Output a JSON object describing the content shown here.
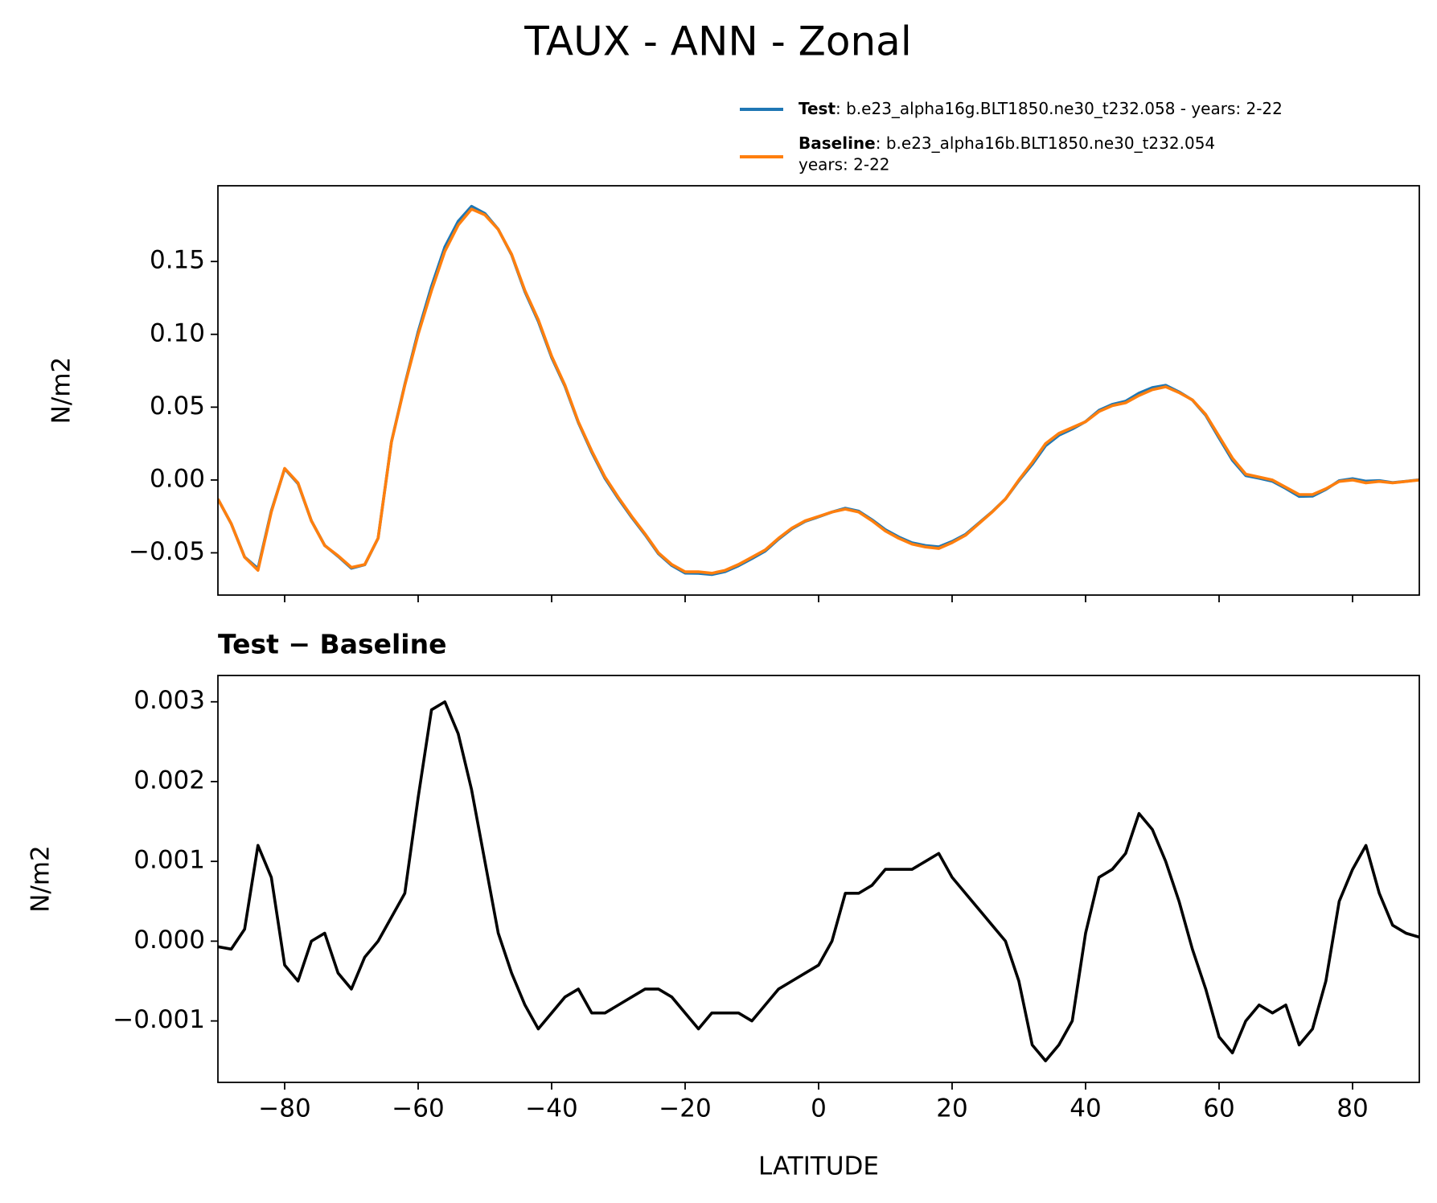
{
  "chart_data": [
    {
      "type": "line",
      "title": "TAUX - ANN - Zonal",
      "ylabel": "N/m2",
      "x": [
        -90,
        -88,
        -86,
        -84,
        -82,
        -80,
        -78,
        -76,
        -74,
        -72,
        -70,
        -68,
        -66,
        -64,
        -62,
        -60,
        -58,
        -56,
        -54,
        -52,
        -50,
        -48,
        -46,
        -44,
        -42,
        -40,
        -38,
        -36,
        -34,
        -32,
        -30,
        -28,
        -26,
        -24,
        -22,
        -20,
        -18,
        -16,
        -14,
        -12,
        -10,
        -8,
        -6,
        -4,
        -2,
        0,
        2,
        4,
        6,
        8,
        10,
        12,
        14,
        16,
        18,
        20,
        22,
        24,
        26,
        28,
        30,
        32,
        34,
        36,
        38,
        40,
        42,
        44,
        46,
        48,
        50,
        52,
        54,
        56,
        58,
        60,
        62,
        64,
        66,
        68,
        70,
        72,
        74,
        76,
        78,
        80,
        82,
        84,
        86,
        88,
        90
      ],
      "series": [
        {
          "name": "Test",
          "case": ": b.e23_alpha16g.BLT1850.ne30_t232.058 - years: 2-22",
          "color": "#1f77b4",
          "values": [
            -0.0131,
            -0.0301,
            -0.0529,
            -0.0608,
            -0.0212,
            0.0077,
            -0.0025,
            -0.028,
            -0.0449,
            -0.0524,
            -0.0606,
            -0.0582,
            -0.04,
            0.0263,
            0.0656,
            0.1018,
            0.1329,
            0.16,
            0.1776,
            0.1879,
            0.183,
            0.1721,
            0.1546,
            0.1292,
            0.1089,
            0.0841,
            0.0643,
            0.0394,
            0.0191,
            0.0011,
            -0.0128,
            -0.0257,
            -0.0376,
            -0.0506,
            -0.0587,
            -0.0639,
            -0.0641,
            -0.0649,
            -0.0629,
            -0.0589,
            -0.054,
            -0.0488,
            -0.0406,
            -0.0335,
            -0.0284,
            -0.0253,
            -0.022,
            -0.0194,
            -0.0214,
            -0.0273,
            -0.0341,
            -0.0391,
            -0.0431,
            -0.045,
            -0.0459,
            -0.0422,
            -0.0374,
            -0.0296,
            -0.0218,
            -0.013,
            -0.0005,
            0.0107,
            0.0235,
            0.0307,
            0.035,
            0.0401,
            0.0478,
            0.0519,
            0.0541,
            0.0596,
            0.0634,
            0.065,
            0.0605,
            0.0549,
            0.0444,
            0.0288,
            0.0136,
            0.003,
            0.0012,
            -0.0009,
            -0.0058,
            -0.0113,
            -0.0111,
            -0.0065,
            -0.0005,
            0.0009,
            -0.0008,
            -0.0004,
            -0.0018,
            -0.0009,
            0.0001
          ]
        },
        {
          "name": "Baseline",
          "case": [
            ": b.e23_alpha16b.BLT1850.ne30_t232.054",
            "years: 2-22"
          ],
          "color": "#ff7f0e",
          "values": [
            -0.013,
            -0.03,
            -0.053,
            -0.062,
            -0.022,
            0.008,
            -0.002,
            -0.028,
            -0.045,
            -0.052,
            -0.06,
            -0.058,
            -0.04,
            0.026,
            0.065,
            0.1,
            0.13,
            0.157,
            0.175,
            0.186,
            0.182,
            0.172,
            0.155,
            0.13,
            0.11,
            0.085,
            0.065,
            0.04,
            0.02,
            0.002,
            -0.012,
            -0.025,
            -0.037,
            -0.05,
            -0.058,
            -0.063,
            -0.063,
            -0.064,
            -0.062,
            -0.058,
            -0.053,
            -0.048,
            -0.04,
            -0.033,
            -0.028,
            -0.025,
            -0.022,
            -0.02,
            -0.022,
            -0.028,
            -0.035,
            -0.04,
            -0.044,
            -0.046,
            -0.047,
            -0.043,
            -0.038,
            -0.03,
            -0.022,
            -0.013,
            0,
            0.012,
            0.025,
            0.032,
            0.036,
            0.04,
            0.047,
            0.051,
            0.053,
            0.058,
            0.062,
            0.064,
            0.06,
            0.055,
            0.045,
            0.03,
            0.015,
            0.004,
            0.002,
            0,
            -0.005,
            -0.01,
            -0.01,
            -0.006,
            -0.001,
            0,
            -0.002,
            -0.001,
            -0.002,
            -0.001,
            0
          ]
        }
      ],
      "xlim": [
        -90,
        90
      ],
      "xticks": [
        {
          "value": -80,
          "label": "−80"
        },
        {
          "value": -60,
          "label": "−60"
        },
        {
          "value": -40,
          "label": "−40"
        },
        {
          "value": -20,
          "label": "−20"
        },
        0,
        20,
        40,
        60,
        80
      ],
      "show_xtick_labels": false,
      "ylim": [
        -0.079,
        0.202
      ],
      "yticks": [
        {
          "value": -0.05,
          "label": "−0.05"
        },
        {
          "value": 0,
          "label": "0.00"
        },
        {
          "value": 0.05,
          "label": "0.05"
        },
        {
          "value": 0.1,
          "label": "0.10"
        },
        {
          "value": 0.15,
          "label": "0.15"
        }
      ],
      "legend": "upper right"
    },
    {
      "type": "line",
      "title": "Test − Baseline",
      "ylabel": "N/m2",
      "xlabel": "LATITUDE",
      "x": [
        -90,
        -88,
        -86,
        -84,
        -82,
        -80,
        -78,
        -76,
        -74,
        -72,
        -70,
        -68,
        -66,
        -64,
        -62,
        -60,
        -58,
        -56,
        -54,
        -52,
        -50,
        -48,
        -46,
        -44,
        -42,
        -40,
        -38,
        -36,
        -34,
        -32,
        -30,
        -28,
        -26,
        -24,
        -22,
        -20,
        -18,
        -16,
        -14,
        -12,
        -10,
        -8,
        -6,
        -4,
        -2,
        0,
        2,
        4,
        6,
        8,
        10,
        12,
        14,
        16,
        18,
        20,
        22,
        24,
        26,
        28,
        30,
        32,
        34,
        36,
        38,
        40,
        42,
        44,
        46,
        48,
        50,
        52,
        54,
        56,
        58,
        60,
        62,
        64,
        66,
        68,
        70,
        72,
        74,
        76,
        78,
        80,
        82,
        84,
        86,
        88,
        90
      ],
      "series": [
        {
          "color": "#000000",
          "values": [
            -7e-05,
            -0.0001,
            0.00015,
            0.0012,
            0.0008,
            -0.0003,
            -0.0005,
            0,
            0.0001,
            -0.0004,
            -0.0006,
            -0.0002,
            0,
            0.0003,
            0.0006,
            0.0018,
            0.0029,
            0.003,
            0.0026,
            0.0019,
            0.001,
            0.0001,
            -0.0004,
            -0.0008,
            -0.0011,
            -0.0009,
            -0.0007,
            -0.0006,
            -0.0009,
            -0.0009,
            -0.0008,
            -0.0007,
            -0.0006,
            -0.0006,
            -0.0007,
            -0.0009,
            -0.0011,
            -0.0009,
            -0.0009,
            -0.0009,
            -0.001,
            -0.0008,
            -0.0006,
            -0.0005,
            -0.0004,
            -0.0003,
            0,
            0.0006,
            0.0006,
            0.0007,
            0.0009,
            0.0009,
            0.0009,
            0.001,
            0.0011,
            0.0008,
            0.0006,
            0.0004,
            0.0002,
            0,
            -0.0005,
            -0.0013,
            -0.0015,
            -0.0013,
            -0.001,
            0.0001,
            0.0008,
            0.0009,
            0.0011,
            0.0016,
            0.0014,
            0.001,
            0.0005,
            -0.0001,
            -0.0006,
            -0.0012,
            -0.0014,
            -0.001,
            -0.0008,
            -0.0009,
            -0.0008,
            -0.0013,
            -0.0011,
            -0.0005,
            0.0005,
            0.0009,
            0.0012,
            0.0006,
            0.0002,
            0.0001,
            5e-05
          ]
        }
      ],
      "xlim": [
        -90,
        90
      ],
      "xticks": [
        {
          "value": -80,
          "label": "−80"
        },
        {
          "value": -60,
          "label": "−60"
        },
        {
          "value": -40,
          "label": "−40"
        },
        {
          "value": -20,
          "label": "−20"
        },
        0,
        20,
        40,
        60,
        80
      ],
      "show_xtick_labels": true,
      "ylim": [
        -0.00177,
        0.00333
      ],
      "yticks": [
        {
          "value": -0.001,
          "label": "−0.001"
        },
        {
          "value": 0,
          "label": "0.000"
        },
        0.001,
        0.002,
        0.003
      ]
    }
  ]
}
